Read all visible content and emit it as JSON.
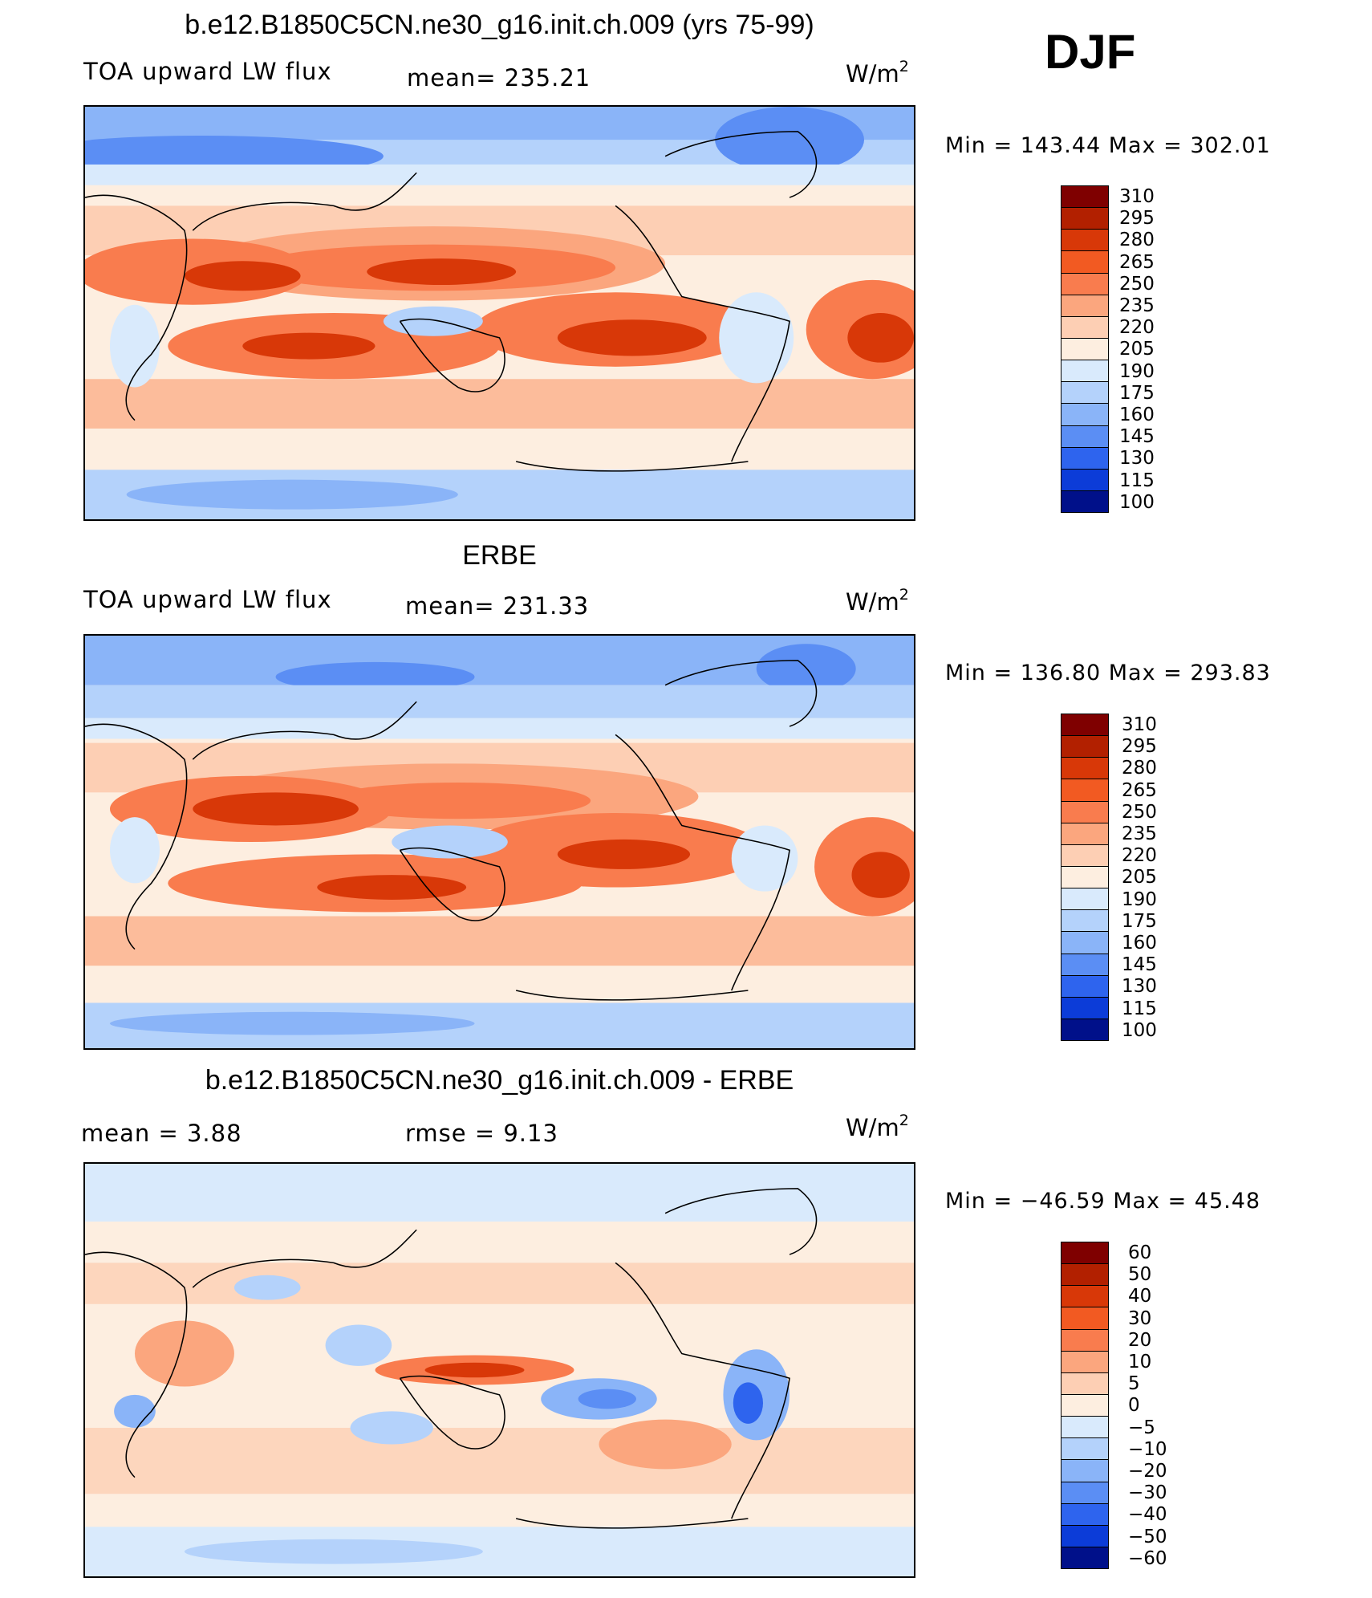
{
  "season": "DJF",
  "panels": [
    {
      "title": "b.e12.B1850C5CN.ne30_g16.init.ch.009 (yrs 75-99)",
      "variable": "TOA upward LW flux",
      "stat": "mean=  235.21",
      "units": "W/m",
      "units_exp": "2",
      "minmax": "Min  =  143.44  Max  =  302.01"
    },
    {
      "title": "ERBE",
      "variable": "TOA upward LW flux",
      "stat": "mean=  231.33",
      "units": "W/m",
      "units_exp": "2",
      "minmax": "Min  =  136.80  Max  =  293.83"
    },
    {
      "title": "b.e12.B1850C5CN.ne30_g16.init.ch.009 - ERBE",
      "mean_text": "mean  =      3.88",
      "rmse_text": "rmse  =      9.13",
      "units": "W/m",
      "units_exp": "2",
      "minmax": "Min  =  −46.59  Max  =     45.48"
    }
  ],
  "colorbars": {
    "abs_levels": [
      "310",
      "295",
      "280",
      "265",
      "250",
      "235",
      "220",
      "205",
      "190",
      "175",
      "160",
      "145",
      "130",
      "115",
      "100"
    ],
    "diff_levels": [
      "60",
      "50",
      "40",
      "30",
      "20",
      "10",
      "5",
      "0",
      "−5",
      "−10",
      "−20",
      "−30",
      "−40",
      "−50",
      "−60"
    ],
    "colors": [
      "#7f0000",
      "#b22000",
      "#d83808",
      "#f25a22",
      "#f97c4e",
      "#fba67e",
      "#fdcfb4",
      "#fdeee0",
      "#d9eafc",
      "#b4d2fb",
      "#8ab4f8",
      "#5b8ef4",
      "#2e64ee",
      "#0c3cd8",
      "#00108a"
    ]
  },
  "chart_data": [
    {
      "type": "heatmap",
      "title": "b.e12.B1850C5CN.ne30_g16.init.ch.009 (yrs 75-99)",
      "variable": "TOA upward LW flux",
      "season": "DJF",
      "units": "W/m2",
      "mean": 235.21,
      "min": 143.44,
      "max": 302.01,
      "contour_levels": [
        100,
        115,
        130,
        145,
        160,
        175,
        190,
        205,
        220,
        235,
        250,
        265,
        280,
        295,
        310
      ]
    },
    {
      "type": "heatmap",
      "title": "ERBE",
      "variable": "TOA upward LW flux",
      "season": "DJF",
      "units": "W/m2",
      "mean": 231.33,
      "min": 136.8,
      "max": 293.83,
      "contour_levels": [
        100,
        115,
        130,
        145,
        160,
        175,
        190,
        205,
        220,
        235,
        250,
        265,
        280,
        295,
        310
      ]
    },
    {
      "type": "heatmap",
      "title": "b.e12.B1850C5CN.ne30_g16.init.ch.009 - ERBE",
      "season": "DJF",
      "units": "W/m2",
      "mean": 3.88,
      "rmse": 9.13,
      "min": -46.59,
      "max": 45.48,
      "contour_levels": [
        -60,
        -50,
        -40,
        -30,
        -20,
        -10,
        -5,
        0,
        5,
        10,
        20,
        30,
        40,
        50,
        60
      ]
    }
  ]
}
